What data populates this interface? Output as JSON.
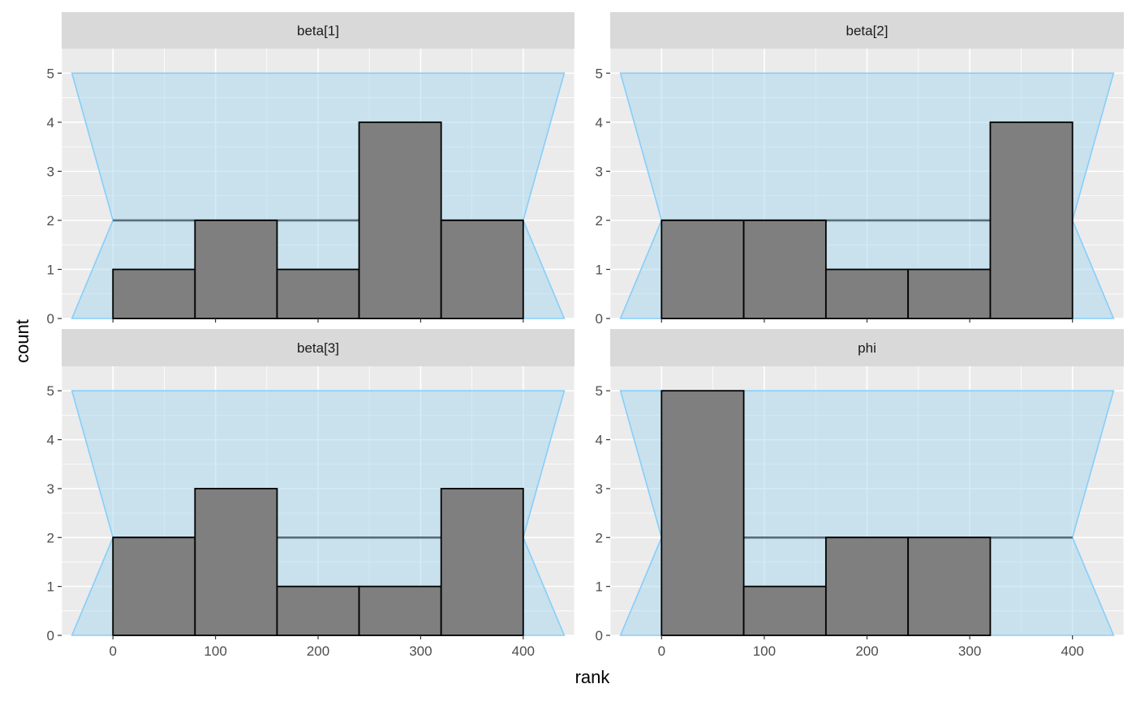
{
  "chart_data": {
    "type": "bar",
    "subtype": "rank-histogram",
    "xlabel": "rank",
    "ylabel": "count",
    "xlim": [
      -50,
      450
    ],
    "ylim": [
      0,
      5.5
    ],
    "x_ticks": [
      0,
      100,
      200,
      300,
      400
    ],
    "y_ticks": [
      0,
      1,
      2,
      3,
      4,
      5
    ],
    "grid": true,
    "bin_edges": [
      0,
      80,
      160,
      240,
      320,
      400
    ],
    "reference_band": {
      "expected_count": 2,
      "lower": 0,
      "upper": 5,
      "x_outer": [
        -40,
        440
      ],
      "x_inner": [
        0,
        400
      ],
      "fill_color": "#a6d8f0",
      "line_color": "#87cefa",
      "center_line_color": "#5a6e7a"
    },
    "bar_fill": "#7f7f7f",
    "bar_stroke": "#000000",
    "panels": [
      {
        "name": "beta[1]",
        "counts": [
          1,
          2,
          1,
          4,
          2
        ]
      },
      {
        "name": "beta[2]",
        "counts": [
          2,
          2,
          1,
          1,
          4
        ]
      },
      {
        "name": "beta[3]",
        "counts": [
          2,
          3,
          1,
          1,
          3
        ]
      },
      {
        "name": "phi",
        "counts": [
          5,
          1,
          2,
          2,
          0
        ]
      }
    ]
  }
}
